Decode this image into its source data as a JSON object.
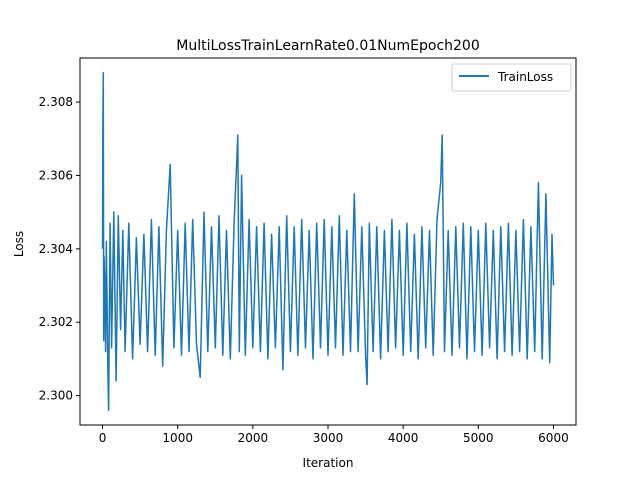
{
  "chart_data": {
    "type": "line",
    "title": "MultiLossTrainLearnRate0.01NumEpoch200",
    "xlabel": "Iteration",
    "ylabel": "Loss",
    "xlim": [
      -300,
      6300
    ],
    "ylim": [
      2.2992,
      2.3092
    ],
    "xticks": [
      0,
      1000,
      2000,
      3000,
      4000,
      5000,
      6000
    ],
    "xtick_labels": [
      "0",
      "1000",
      "2000",
      "3000",
      "4000",
      "5000",
      "6000"
    ],
    "yticks": [
      2.3,
      2.302,
      2.304,
      2.306,
      2.308
    ],
    "ytick_labels": [
      "2.300",
      "2.302",
      "2.304",
      "2.306",
      "2.308"
    ],
    "grid": false,
    "legend": {
      "position": "top-right"
    },
    "series": [
      {
        "name": "TrainLoss",
        "color": "#1f77b4",
        "note_points": "approximate samples read from a dense noisy curve (~6000 iterations)",
        "x": [
          0,
          5,
          10,
          15,
          20,
          30,
          40,
          50,
          60,
          70,
          80,
          100,
          120,
          150,
          180,
          210,
          240,
          270,
          300,
          350,
          400,
          450,
          500,
          550,
          600,
          650,
          700,
          750,
          800,
          850,
          900,
          950,
          1000,
          1050,
          1100,
          1150,
          1200,
          1250,
          1300,
          1350,
          1400,
          1450,
          1500,
          1550,
          1600,
          1650,
          1700,
          1750,
          1800,
          1820,
          1850,
          1900,
          1950,
          2000,
          2050,
          2100,
          2150,
          2200,
          2250,
          2300,
          2350,
          2400,
          2450,
          2500,
          2550,
          2600,
          2650,
          2700,
          2750,
          2800,
          2850,
          2900,
          2950,
          3000,
          3050,
          3100,
          3150,
          3200,
          3250,
          3300,
          3350,
          3400,
          3450,
          3500,
          3520,
          3550,
          3600,
          3650,
          3700,
          3750,
          3800,
          3850,
          3900,
          3950,
          4000,
          4050,
          4100,
          4150,
          4200,
          4250,
          4300,
          4350,
          4400,
          4450,
          4500,
          4520,
          4550,
          4600,
          4650,
          4700,
          4750,
          4800,
          4850,
          4900,
          4950,
          5000,
          5050,
          5100,
          5150,
          5200,
          5250,
          5300,
          5350,
          5400,
          5450,
          5500,
          5550,
          5600,
          5650,
          5700,
          5750,
          5800,
          5850,
          5900,
          5950,
          5980,
          6000
        ],
        "y": [
          2.304,
          2.3074,
          2.3088,
          2.3015,
          2.3038,
          2.303,
          2.3012,
          2.3042,
          2.3025,
          2.3008,
          2.2996,
          2.3047,
          2.3013,
          2.305,
          2.3004,
          2.3049,
          2.3018,
          2.3045,
          2.3012,
          2.3047,
          2.301,
          2.3043,
          2.3014,
          2.3044,
          2.3012,
          2.3048,
          2.3011,
          2.3046,
          2.3008,
          2.3045,
          2.3063,
          2.3013,
          2.3045,
          2.3011,
          2.3047,
          2.3012,
          2.3048,
          2.3014,
          2.3005,
          2.305,
          2.3012,
          2.3046,
          2.3013,
          2.3049,
          2.3011,
          2.3045,
          2.301,
          2.3047,
          2.3071,
          2.3012,
          2.306,
          2.3011,
          2.3048,
          2.3013,
          2.3046,
          2.3012,
          2.3047,
          2.301,
          2.3044,
          2.3013,
          2.3046,
          2.3007,
          2.3049,
          2.3012,
          2.3046,
          2.3011,
          2.3048,
          2.3013,
          2.3045,
          2.301,
          2.3047,
          2.3013,
          2.3048,
          2.3011,
          2.3046,
          2.3013,
          2.3049,
          2.3011,
          2.3045,
          2.3012,
          2.3055,
          2.3012,
          2.3046,
          2.3011,
          2.3003,
          2.3047,
          2.3012,
          2.3046,
          2.301,
          2.3045,
          2.3012,
          2.3048,
          2.3013,
          2.3045,
          2.3011,
          2.3047,
          2.3012,
          2.3044,
          2.301,
          2.3046,
          2.3013,
          2.3045,
          2.3011,
          2.3048,
          2.3058,
          2.3071,
          2.3012,
          2.3045,
          2.3011,
          2.3046,
          2.3013,
          2.3047,
          2.301,
          2.3046,
          2.3012,
          2.3045,
          2.3011,
          2.3047,
          2.3013,
          2.3045,
          2.301,
          2.3046,
          2.3012,
          2.3047,
          2.3011,
          2.3045,
          2.3012,
          2.3048,
          2.301,
          2.3046,
          2.3012,
          2.3058,
          2.301,
          2.3055,
          2.3009,
          2.3044,
          2.303
        ]
      }
    ]
  }
}
